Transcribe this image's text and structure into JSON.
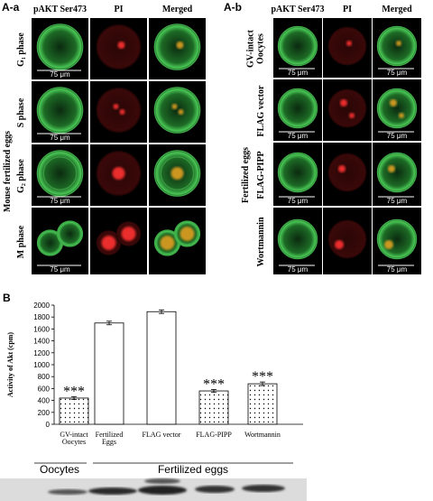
{
  "panel_a": {
    "label": "A-a",
    "column_headers": [
      "pAKT Ser473",
      "PI",
      "Merged"
    ],
    "row_labels": [
      "G₁ phase",
      "S phase",
      "G₂ phase",
      "M phase"
    ],
    "group_label": "Mouse fertilized eggs",
    "scale_bar": "75 μm"
  },
  "panel_a_b": {
    "label": "A-b",
    "column_headers": [
      "pAKT Ser473",
      "PI",
      "Merged"
    ],
    "row_labels": [
      "GV-intact\nOocytes",
      "FLAG vector",
      "FLAG-PIPP",
      "Wortmannin"
    ],
    "group_label": "Fertilized eggs",
    "scale_bar": "75 μm"
  },
  "chart_data": {
    "type": "bar",
    "panel_label": "B",
    "y_label": "Activity of Akt (cpm)",
    "categories": [
      "GV-intact\nOocytes",
      "Fertilized\nEggs",
      "FLAG vector",
      "FLAG-PIPP",
      "Wortmannin"
    ],
    "values": [
      440,
      1700,
      1890,
      560,
      680
    ],
    "errors": [
      25,
      30,
      30,
      25,
      30
    ],
    "significance": [
      "***",
      null,
      null,
      "***",
      "***"
    ],
    "fill_patterns": [
      "dots",
      "none",
      "none",
      "dots",
      "dots"
    ],
    "color": "#ffffff",
    "ylim": [
      0,
      2000
    ],
    "yticks": [
      0,
      200,
      400,
      600,
      800,
      1000,
      1200,
      1400,
      1600,
      1800,
      2000
    ],
    "group_labels": [
      "Oocytes",
      "Fertilized eggs"
    ]
  }
}
